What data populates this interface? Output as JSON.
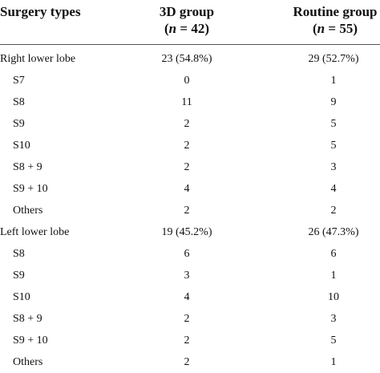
{
  "table": {
    "headers": {
      "col1": "Surgery types",
      "col2_line1": "3D group",
      "col2_n_symbol": "n",
      "col2_n_rest": " = 42)",
      "col3_line1": "Routine group",
      "col3_n_symbol": "n",
      "col3_n_rest": " = 55)",
      "paren_open": "("
    },
    "rows": [
      {
        "label": "Right lower lobe",
        "v1": "23 (54.8%)",
        "v2": "29 (52.7%)"
      },
      {
        "label": "S7",
        "v1": "0",
        "v2": "1"
      },
      {
        "label": "S8",
        "v1": "11",
        "v2": "9"
      },
      {
        "label": "S9",
        "v1": "2",
        "v2": "5"
      },
      {
        "label": "S10",
        "v1": "2",
        "v2": "5"
      },
      {
        "label": "S8 + 9",
        "v1": "2",
        "v2": "3"
      },
      {
        "label": "S9 + 10",
        "v1": "4",
        "v2": "4"
      },
      {
        "label": "Others",
        "v1": "2",
        "v2": "2"
      },
      {
        "label": "Left lower lobe",
        "v1": "19 (45.2%)",
        "v2": "26 (47.3%)"
      },
      {
        "label": "S8",
        "v1": "6",
        "v2": "6"
      },
      {
        "label": "S9",
        "v1": "3",
        "v2": "1"
      },
      {
        "label": "S10",
        "v1": "4",
        "v2": "10"
      },
      {
        "label": "S8 + 9",
        "v1": "2",
        "v2": "3"
      },
      {
        "label": "S9 + 10",
        "v1": "2",
        "v2": "5"
      },
      {
        "label": "Others",
        "v1": "2",
        "v2": "1"
      }
    ]
  }
}
